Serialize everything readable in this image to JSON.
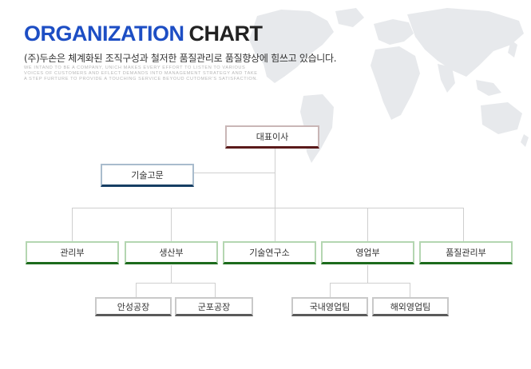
{
  "header": {
    "title_part1": "ORGANIZATION",
    "title_part2": "CHART",
    "subtitle": "(주)두손은 체계화된 조직구성과 철저한 품질관리로 품질향상에 힘쓰고 있습니다.",
    "english_lines": [
      "WE INTAND TO BE A COMPANY, UNICH MAKES EVERY   EFFORT TO LISTEN TO VARIOUS",
      "VOICES OF CUSTOMERS AND EFLECT DEMANDS INTO MANAGEMENT STRATEGY AND TAKE",
      "A STEP FURTURE TO PROVIDE A TOUCHING SERVICE BEYOUD CUTOMER'S SATISFACTION."
    ]
  },
  "org": {
    "ceo": "대표이사",
    "advisor": "기술고문",
    "departments": [
      "관리부",
      "생산부",
      "기술연구소",
      "영업부",
      "품질관리부"
    ],
    "production_units": [
      "안성공장",
      "군포공장"
    ],
    "sales_units": [
      "국내영업팀",
      "해외영업팀"
    ]
  },
  "colors": {
    "title_accent": "#1d4ec4",
    "ceo_accent": "#5a1a1a",
    "advisor_accent": "#163e63",
    "department_accent": "#1c6b1c",
    "unit_accent": "#5a5a5a",
    "connector": "#cfcfcf"
  }
}
